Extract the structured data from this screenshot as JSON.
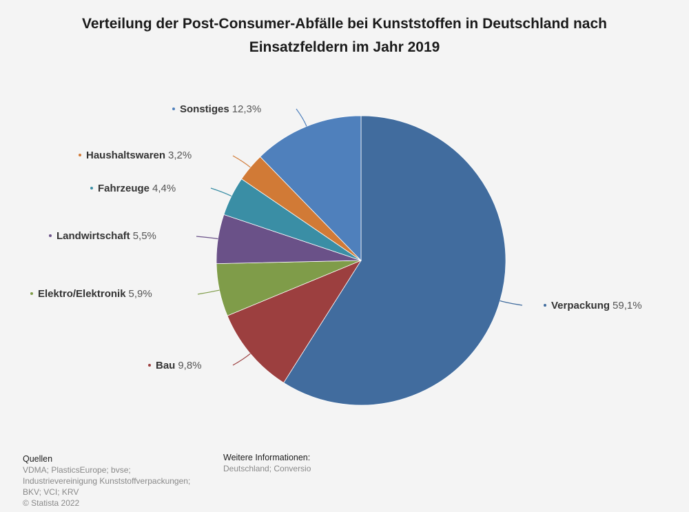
{
  "chart_data": {
    "type": "pie",
    "title_lines": [
      "Verteilung der Post-Consumer-Abfälle bei Kunststoffen in Deutschland nach",
      "Einsatzfeldern im Jahr 2019"
    ],
    "slices": [
      {
        "label": "Verpackung",
        "value": 59.1,
        "display_value": "59,1%",
        "color": "#416c9e"
      },
      {
        "label": "Bau",
        "value": 9.8,
        "display_value": "9,8%",
        "color": "#9c3f3f"
      },
      {
        "label": "Elektro/Elektronik",
        "value": 5.9,
        "display_value": "5,9%",
        "color": "#7f9c49"
      },
      {
        "label": "Landwirtschaft",
        "value": 5.5,
        "display_value": "5,5%",
        "color": "#6a5188"
      },
      {
        "label": "Fahrzeuge",
        "value": 4.4,
        "display_value": "4,4%",
        "color": "#3a8ea5"
      },
      {
        "label": "Haushaltswaren",
        "value": 3.2,
        "display_value": "3,2%",
        "color": "#d17a36"
      },
      {
        "label": "Sonstiges",
        "value": 12.3,
        "display_value": "12,3%",
        "color": "#4f80bc"
      }
    ]
  },
  "footer": {
    "sources_heading": "Quellen",
    "sources_lines": [
      "VDMA; PlasticsEurope; bvse;",
      "Industrievereinigung Kunststoffverpackungen;",
      "BKV; VCI; KRV",
      "© Statista 2022"
    ],
    "info_heading": "Weitere Informationen:",
    "info_lines": [
      "Deutschland; Conversio"
    ]
  }
}
